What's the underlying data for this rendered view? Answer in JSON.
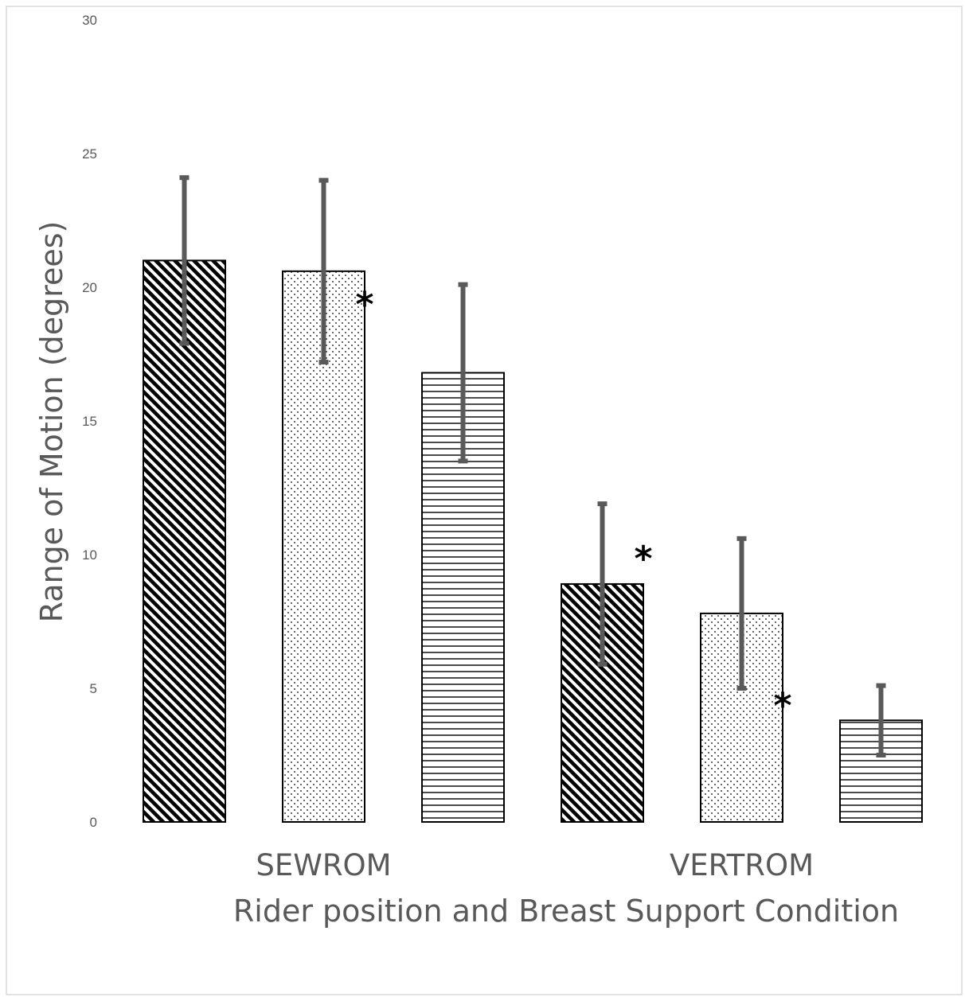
{
  "chart_data": {
    "type": "bar",
    "title": "",
    "xlabel": "Rider position and Breast Support Condition",
    "ylabel": "Range of Motion (degrees)",
    "ylim": [
      0,
      30
    ],
    "yticks": [
      0,
      5,
      10,
      15,
      20,
      25,
      30
    ],
    "grid": false,
    "legend": "none",
    "groups": [
      {
        "label": "SEWROM",
        "bars": [
          {
            "pattern": "diagonal",
            "value": 21.0,
            "error": 3.1,
            "significant": false
          },
          {
            "pattern": "dots",
            "value": 20.6,
            "error": 3.4,
            "significant": false
          },
          {
            "pattern": "horizontal",
            "value": 16.8,
            "error": 3.3,
            "significant": true
          }
        ]
      },
      {
        "label": "VERTROM",
        "bars": [
          {
            "pattern": "diagonal",
            "value": 8.9,
            "error": 3.0,
            "significant": false
          },
          {
            "pattern": "dots",
            "value": 7.8,
            "error": 2.8,
            "significant": true
          },
          {
            "pattern": "horizontal",
            "value": 3.8,
            "error": 1.3,
            "significant": true
          }
        ]
      }
    ],
    "significance_marker": "*",
    "colors": {
      "bar_outline": "#000000",
      "error_bar": "#595959",
      "text": "#595959",
      "frame": "#d9d9d9"
    }
  }
}
